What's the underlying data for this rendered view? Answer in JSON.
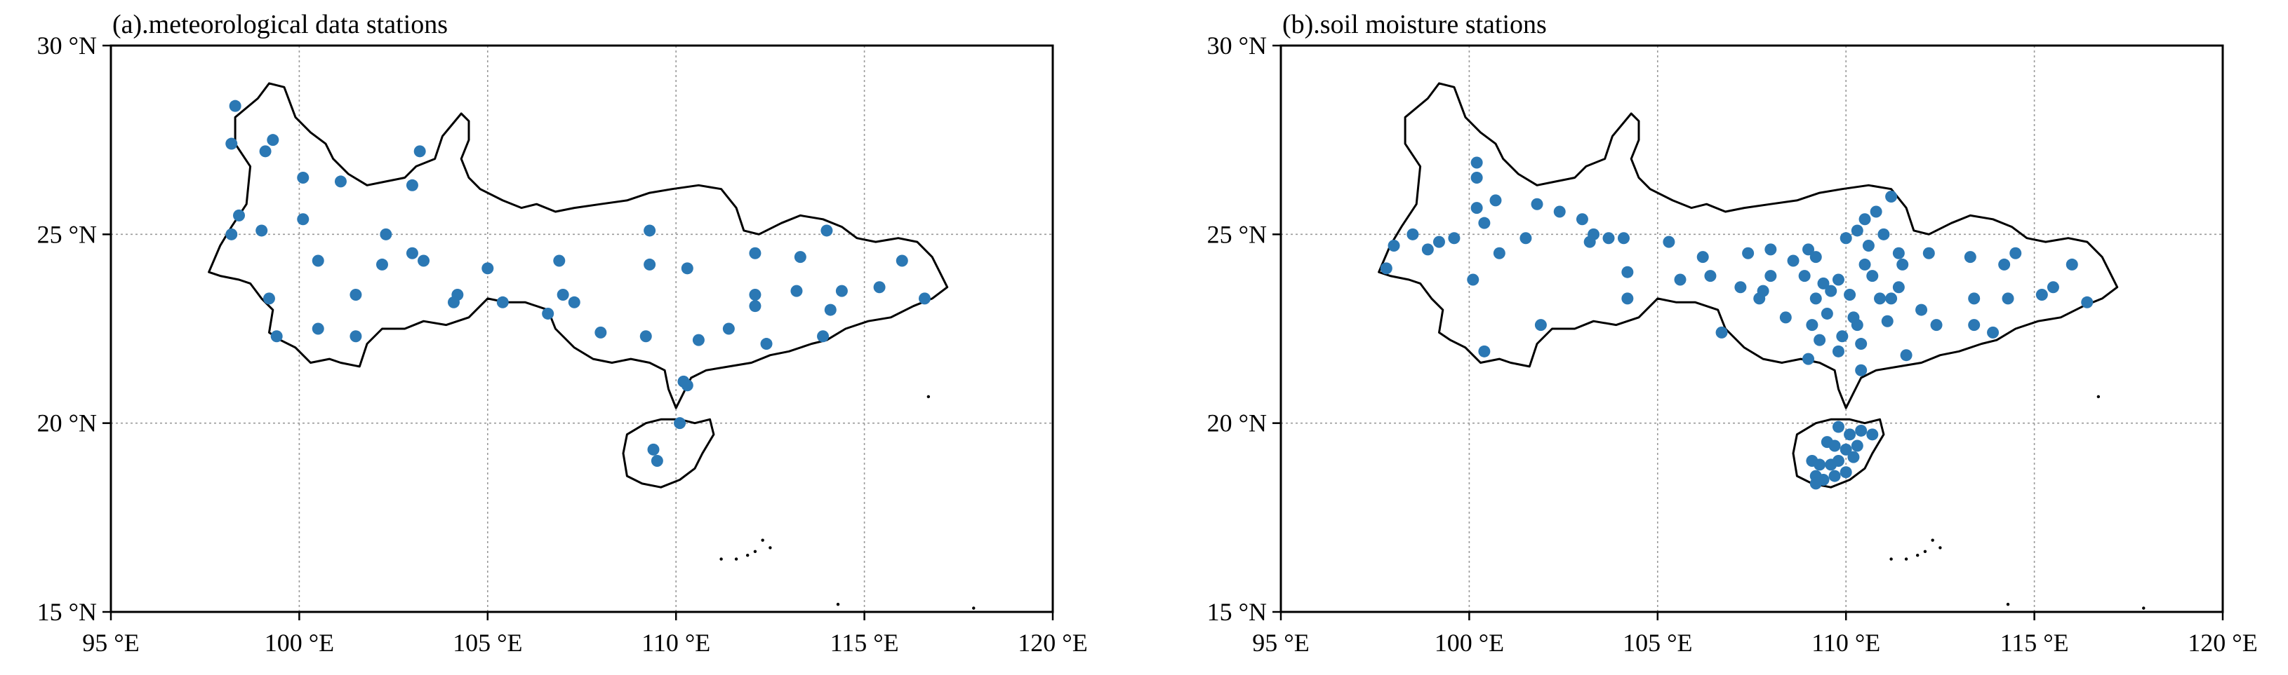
{
  "figure": {
    "colors": {
      "station": "#2b78b4",
      "boundary": "#000000",
      "grid": "#9a9a9a",
      "frame": "#000000",
      "text": "#000000"
    },
    "lon_range": [
      95,
      120
    ],
    "lat_range": [
      15,
      30
    ],
    "grid_lons": [
      100,
      105,
      110,
      115
    ],
    "grid_lats": [
      20,
      25
    ],
    "lon_ticks": [
      {
        "value": 95,
        "label": "95 °E"
      },
      {
        "value": 100,
        "label": "100 °E"
      },
      {
        "value": 105,
        "label": "105 °E"
      },
      {
        "value": 110,
        "label": "110 °E"
      },
      {
        "value": 115,
        "label": "115 °E"
      },
      {
        "value": 120,
        "label": "120 °E"
      }
    ],
    "lat_ticks": [
      {
        "value": 15,
        "label": "15 °N"
      },
      {
        "value": 20,
        "label": "20 °N"
      },
      {
        "value": 25,
        "label": "25 °N"
      },
      {
        "value": 30,
        "label": "30 °N"
      }
    ],
    "regions": {
      "mainland": [
        [
          97.6,
          24.0
        ],
        [
          97.9,
          24.7
        ],
        [
          98.2,
          25.2
        ],
        [
          98.6,
          25.8
        ],
        [
          98.7,
          26.8
        ],
        [
          98.3,
          27.4
        ],
        [
          98.3,
          28.1
        ],
        [
          98.9,
          28.6
        ],
        [
          99.2,
          29.0
        ],
        [
          99.6,
          28.9
        ],
        [
          99.9,
          28.1
        ],
        [
          100.3,
          27.7
        ],
        [
          100.7,
          27.4
        ],
        [
          100.9,
          27.0
        ],
        [
          101.3,
          26.6
        ],
        [
          101.8,
          26.3
        ],
        [
          102.3,
          26.4
        ],
        [
          102.8,
          26.5
        ],
        [
          103.1,
          26.8
        ],
        [
          103.6,
          27.0
        ],
        [
          103.8,
          27.6
        ],
        [
          104.3,
          28.2
        ],
        [
          104.5,
          28.0
        ],
        [
          104.5,
          27.5
        ],
        [
          104.3,
          27.0
        ],
        [
          104.5,
          26.5
        ],
        [
          104.8,
          26.2
        ],
        [
          105.4,
          25.9
        ],
        [
          105.9,
          25.7
        ],
        [
          106.3,
          25.8
        ],
        [
          106.8,
          25.6
        ],
        [
          107.3,
          25.7
        ],
        [
          108.0,
          25.8
        ],
        [
          108.7,
          25.9
        ],
        [
          109.3,
          26.1
        ],
        [
          109.9,
          26.2
        ],
        [
          110.6,
          26.3
        ],
        [
          111.2,
          26.2
        ],
        [
          111.6,
          25.7
        ],
        [
          111.8,
          25.1
        ],
        [
          112.2,
          25.0
        ],
        [
          112.8,
          25.3
        ],
        [
          113.3,
          25.5
        ],
        [
          113.9,
          25.4
        ],
        [
          114.4,
          25.2
        ],
        [
          114.8,
          24.9
        ],
        [
          115.3,
          24.8
        ],
        [
          115.9,
          24.9
        ],
        [
          116.4,
          24.8
        ],
        [
          116.8,
          24.4
        ],
        [
          117.0,
          24.0
        ],
        [
          117.2,
          23.6
        ],
        [
          116.8,
          23.3
        ],
        [
          116.3,
          23.1
        ],
        [
          115.7,
          22.8
        ],
        [
          115.1,
          22.7
        ],
        [
          114.5,
          22.5
        ],
        [
          114.0,
          22.2
        ],
        [
          113.6,
          22.1
        ],
        [
          113.0,
          21.9
        ],
        [
          112.5,
          21.8
        ],
        [
          112.0,
          21.6
        ],
        [
          111.4,
          21.5
        ],
        [
          110.8,
          21.4
        ],
        [
          110.4,
          21.2
        ],
        [
          110.2,
          20.8
        ],
        [
          110.0,
          20.4
        ],
        [
          109.8,
          20.9
        ],
        [
          109.7,
          21.4
        ],
        [
          109.3,
          21.6
        ],
        [
          108.8,
          21.7
        ],
        [
          108.3,
          21.6
        ],
        [
          107.8,
          21.7
        ],
        [
          107.3,
          22.0
        ],
        [
          106.8,
          22.5
        ],
        [
          106.6,
          23.0
        ],
        [
          106.0,
          23.2
        ],
        [
          105.5,
          23.2
        ],
        [
          105.0,
          23.3
        ],
        [
          104.5,
          22.8
        ],
        [
          103.9,
          22.6
        ],
        [
          103.3,
          22.7
        ],
        [
          102.8,
          22.5
        ],
        [
          102.2,
          22.5
        ],
        [
          101.8,
          22.1
        ],
        [
          101.6,
          21.5
        ],
        [
          101.1,
          21.6
        ],
        [
          100.8,
          21.7
        ],
        [
          100.3,
          21.6
        ],
        [
          99.9,
          22.0
        ],
        [
          99.5,
          22.2
        ],
        [
          99.2,
          22.4
        ],
        [
          99.3,
          23.0
        ],
        [
          99.0,
          23.3
        ],
        [
          98.7,
          23.7
        ],
        [
          98.4,
          23.8
        ],
        [
          97.9,
          23.9
        ]
      ],
      "hainan": [
        [
          108.6,
          19.2
        ],
        [
          108.7,
          19.7
        ],
        [
          109.2,
          20.0
        ],
        [
          109.6,
          20.1
        ],
        [
          110.1,
          20.1
        ],
        [
          110.5,
          20.0
        ],
        [
          110.9,
          20.1
        ],
        [
          111.0,
          19.7
        ],
        [
          110.7,
          19.2
        ],
        [
          110.5,
          18.8
        ],
        [
          110.1,
          18.5
        ],
        [
          109.6,
          18.3
        ],
        [
          109.1,
          18.4
        ],
        [
          108.7,
          18.6
        ]
      ],
      "islands": [
        [
          112.3,
          16.9
        ],
        [
          112.1,
          16.6
        ],
        [
          111.9,
          16.5
        ],
        [
          111.6,
          16.4
        ],
        [
          112.5,
          16.7
        ],
        [
          111.2,
          16.4
        ],
        [
          114.3,
          15.2
        ],
        [
          116.7,
          20.7
        ],
        [
          117.9,
          15.1
        ]
      ]
    },
    "panels": [
      {
        "id": "meteorological",
        "title": "(a).meteorological data stations",
        "stations": [
          [
            98.3,
            28.4
          ],
          [
            98.2,
            27.4
          ],
          [
            99.1,
            27.2
          ],
          [
            99.3,
            27.5
          ],
          [
            98.4,
            25.5
          ],
          [
            98.2,
            25.0
          ],
          [
            99.0,
            25.1
          ],
          [
            100.1,
            26.5
          ],
          [
            101.1,
            26.4
          ],
          [
            100.1,
            25.4
          ],
          [
            103.0,
            26.3
          ],
          [
            103.2,
            27.2
          ],
          [
            102.3,
            25.0
          ],
          [
            102.2,
            24.2
          ],
          [
            100.5,
            24.3
          ],
          [
            103.0,
            24.5
          ],
          [
            103.3,
            24.3
          ],
          [
            104.2,
            23.4
          ],
          [
            104.1,
            23.2
          ],
          [
            99.2,
            23.3
          ],
          [
            99.4,
            22.3
          ],
          [
            100.5,
            22.5
          ],
          [
            101.5,
            23.4
          ],
          [
            101.5,
            22.3
          ],
          [
            105.0,
            24.1
          ],
          [
            105.4,
            23.2
          ],
          [
            106.9,
            24.3
          ],
          [
            107.0,
            23.4
          ],
          [
            107.3,
            23.2
          ],
          [
            106.6,
            22.9
          ],
          [
            108.0,
            22.4
          ],
          [
            109.3,
            25.1
          ],
          [
            109.3,
            24.2
          ],
          [
            110.3,
            24.1
          ],
          [
            109.2,
            22.3
          ],
          [
            110.2,
            21.1
          ],
          [
            110.3,
            21.0
          ],
          [
            110.6,
            22.2
          ],
          [
            111.4,
            22.5
          ],
          [
            112.1,
            24.5
          ],
          [
            112.1,
            23.4
          ],
          [
            112.1,
            23.1
          ],
          [
            112.4,
            22.1
          ],
          [
            113.3,
            24.4
          ],
          [
            113.2,
            23.5
          ],
          [
            114.0,
            25.1
          ],
          [
            114.1,
            23.0
          ],
          [
            114.4,
            23.5
          ],
          [
            113.9,
            22.3
          ],
          [
            115.4,
            23.6
          ],
          [
            116.0,
            24.3
          ],
          [
            116.6,
            23.3
          ],
          [
            110.1,
            20.0
          ],
          [
            109.4,
            19.3
          ],
          [
            109.5,
            19.0
          ]
        ]
      },
      {
        "id": "soil-moisture",
        "title": "(b).soil moisture stations",
        "stations": [
          [
            100.2,
            26.9
          ],
          [
            100.2,
            26.5
          ],
          [
            100.7,
            25.9
          ],
          [
            100.2,
            25.7
          ],
          [
            100.4,
            25.3
          ],
          [
            101.8,
            25.8
          ],
          [
            102.4,
            25.6
          ],
          [
            103.0,
            25.4
          ],
          [
            103.2,
            24.8
          ],
          [
            103.3,
            25.0
          ],
          [
            103.7,
            24.9
          ],
          [
            104.1,
            24.9
          ],
          [
            104.2,
            24.0
          ],
          [
            104.2,
            23.3
          ],
          [
            100.1,
            23.8
          ],
          [
            100.4,
            21.9
          ],
          [
            101.9,
            22.6
          ],
          [
            97.8,
            24.1
          ],
          [
            98.0,
            24.7
          ],
          [
            98.5,
            25.0
          ],
          [
            98.9,
            24.6
          ],
          [
            99.2,
            24.8
          ],
          [
            99.6,
            24.9
          ],
          [
            100.8,
            24.5
          ],
          [
            101.5,
            24.9
          ],
          [
            105.3,
            24.8
          ],
          [
            105.6,
            23.8
          ],
          [
            106.2,
            24.4
          ],
          [
            106.4,
            23.9
          ],
          [
            106.7,
            22.4
          ],
          [
            107.2,
            23.6
          ],
          [
            107.4,
            24.5
          ],
          [
            107.7,
            23.3
          ],
          [
            107.8,
            23.5
          ],
          [
            108.0,
            24.6
          ],
          [
            108.0,
            23.9
          ],
          [
            108.4,
            22.8
          ],
          [
            108.6,
            24.3
          ],
          [
            108.9,
            23.9
          ],
          [
            109.0,
            24.6
          ],
          [
            109.2,
            24.4
          ],
          [
            109.2,
            23.3
          ],
          [
            109.1,
            22.6
          ],
          [
            109.0,
            21.7
          ],
          [
            109.4,
            23.7
          ],
          [
            109.3,
            22.2
          ],
          [
            109.5,
            22.9
          ],
          [
            109.6,
            23.5
          ],
          [
            109.8,
            23.8
          ],
          [
            109.9,
            22.3
          ],
          [
            109.8,
            21.9
          ],
          [
            110.1,
            23.4
          ],
          [
            110.2,
            22.8
          ],
          [
            110.0,
            24.9
          ],
          [
            110.3,
            25.1
          ],
          [
            110.5,
            25.4
          ],
          [
            110.8,
            25.6
          ],
          [
            110.6,
            24.7
          ],
          [
            110.5,
            24.2
          ],
          [
            110.7,
            23.9
          ],
          [
            110.9,
            23.3
          ],
          [
            111.1,
            22.7
          ],
          [
            111.2,
            26.0
          ],
          [
            111.0,
            25.0
          ],
          [
            111.4,
            24.5
          ],
          [
            111.5,
            24.2
          ],
          [
            111.4,
            23.6
          ],
          [
            111.2,
            23.3
          ],
          [
            110.3,
            22.6
          ],
          [
            110.4,
            22.1
          ],
          [
            110.4,
            21.4
          ],
          [
            111.6,
            21.8
          ],
          [
            112.0,
            23.0
          ],
          [
            112.4,
            22.6
          ],
          [
            112.2,
            24.5
          ],
          [
            113.3,
            24.4
          ],
          [
            113.4,
            23.3
          ],
          [
            113.4,
            22.6
          ],
          [
            113.9,
            22.4
          ],
          [
            114.3,
            23.3
          ],
          [
            114.5,
            24.5
          ],
          [
            114.2,
            24.2
          ],
          [
            115.2,
            23.4
          ],
          [
            115.5,
            23.6
          ],
          [
            116.0,
            24.2
          ],
          [
            116.4,
            23.2
          ],
          [
            109.8,
            19.9
          ],
          [
            110.1,
            19.7
          ],
          [
            110.4,
            19.8
          ],
          [
            110.7,
            19.7
          ],
          [
            109.5,
            19.5
          ],
          [
            109.7,
            19.4
          ],
          [
            110.0,
            19.3
          ],
          [
            110.3,
            19.4
          ],
          [
            109.1,
            19.0
          ],
          [
            109.3,
            18.9
          ],
          [
            109.6,
            18.9
          ],
          [
            109.8,
            19.0
          ],
          [
            110.2,
            19.1
          ],
          [
            109.2,
            18.6
          ],
          [
            109.4,
            18.5
          ],
          [
            109.7,
            18.6
          ],
          [
            110.0,
            18.7
          ],
          [
            109.2,
            18.4
          ]
        ]
      }
    ]
  }
}
